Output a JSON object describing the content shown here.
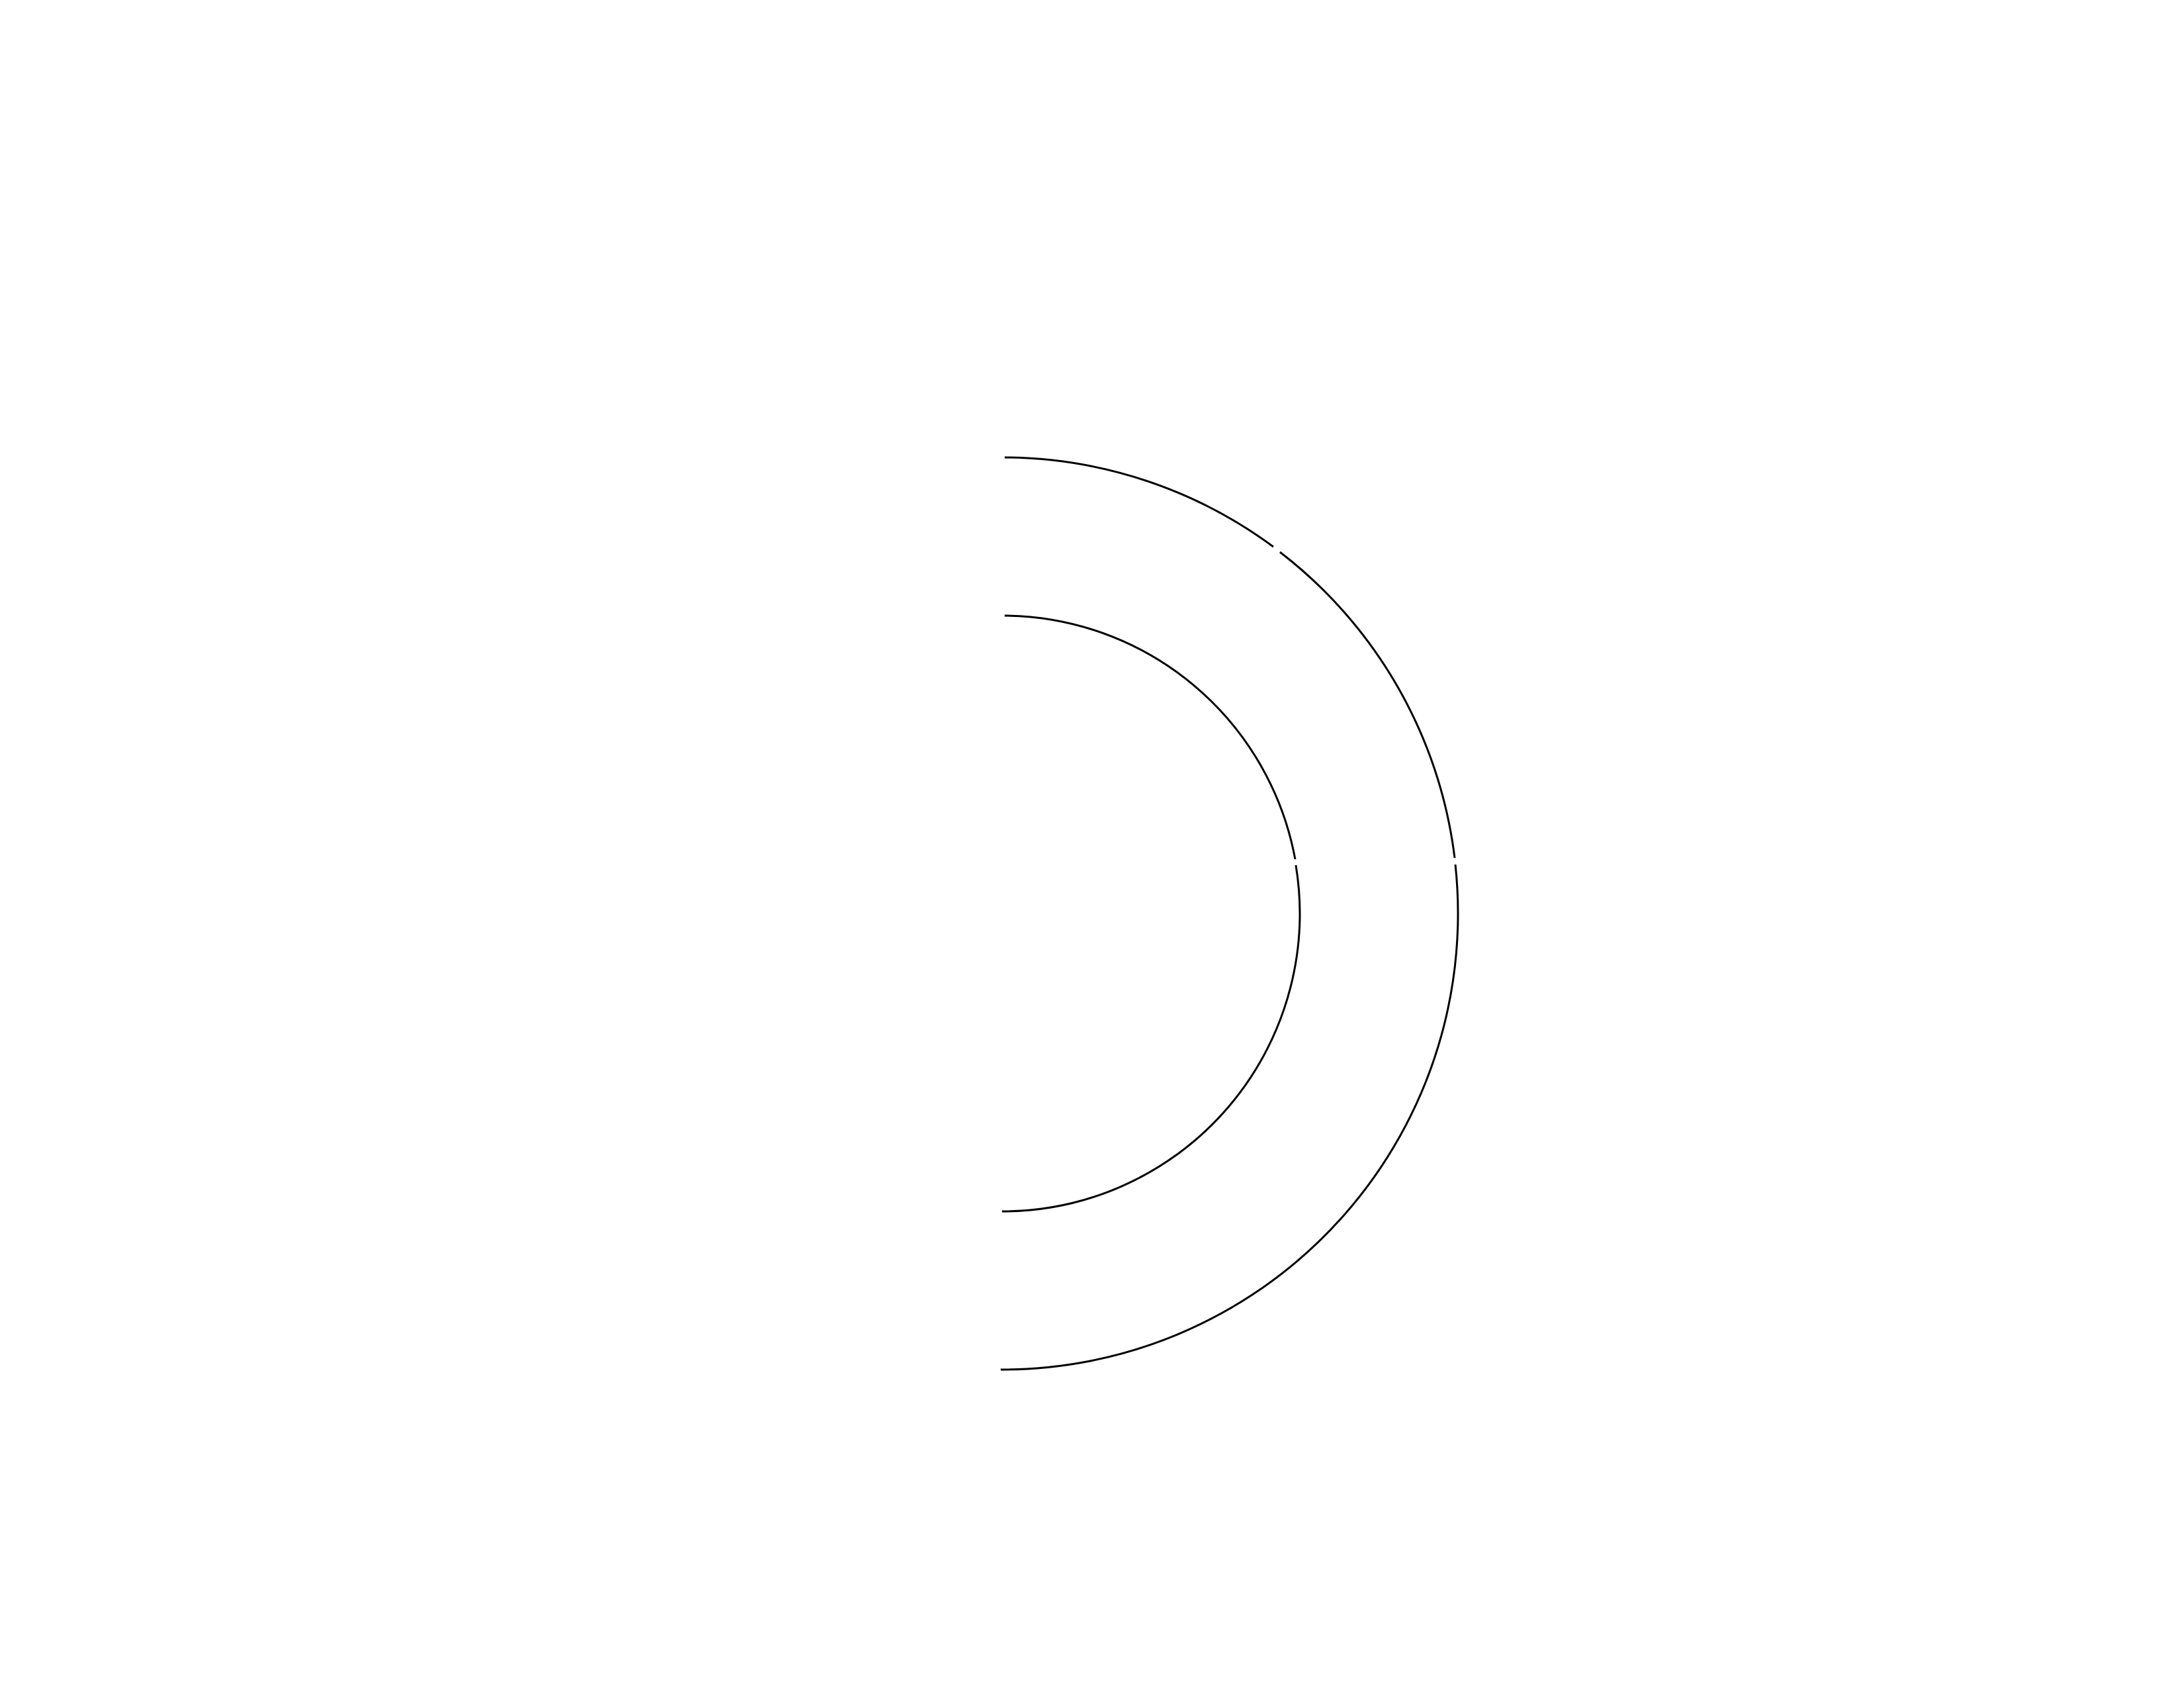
{
  "diagram": {
    "shape": "two concentric semicircular arcs, opening to the left",
    "stroke_color": "#000000",
    "background_color": "#ffffff",
    "arcs": [
      {
        "id": "outer",
        "gaps": 2
      },
      {
        "id": "inner",
        "gaps": 1
      }
    ]
  }
}
